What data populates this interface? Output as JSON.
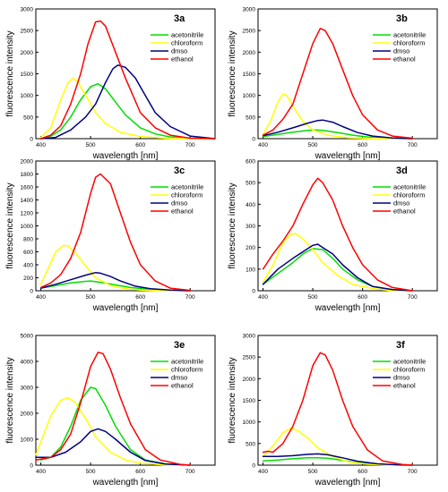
{
  "chart_data": [
    {
      "type": "line",
      "title": "3a",
      "xlabel": "wavelength [nm]",
      "ylabel": "fluorescence intensity",
      "xlim": [
        390,
        750
      ],
      "ylim": [
        0,
        3000
      ],
      "xticks": [
        400,
        500,
        600,
        700
      ],
      "yticks": [
        0,
        500,
        1000,
        1500,
        2000,
        2500,
        3000
      ],
      "legend_position": "top-right",
      "series": [
        {
          "name": "acetonitrile",
          "color": "#00dd00",
          "x": [
            400,
            420,
            440,
            460,
            480,
            500,
            515,
            530,
            550,
            570,
            600,
            630,
            660,
            700,
            750
          ],
          "y": [
            0,
            60,
            200,
            500,
            900,
            1200,
            1270,
            1150,
            850,
            550,
            250,
            110,
            40,
            10,
            0
          ]
        },
        {
          "name": "chloroform",
          "color": "#ffff00",
          "x": [
            400,
            420,
            440,
            455,
            465,
            475,
            490,
            510,
            530,
            560,
            600,
            650,
            700,
            750
          ],
          "y": [
            30,
            250,
            900,
            1300,
            1400,
            1300,
            1000,
            600,
            350,
            150,
            50,
            10,
            0,
            0
          ]
        },
        {
          "name": "dmso",
          "color": "#000080",
          "x": [
            400,
            430,
            460,
            490,
            510,
            530,
            545,
            555,
            570,
            590,
            610,
            630,
            660,
            700,
            750
          ],
          "y": [
            0,
            30,
            200,
            500,
            800,
            1300,
            1620,
            1700,
            1650,
            1400,
            1000,
            600,
            280,
            60,
            0
          ]
        },
        {
          "name": "ethanol",
          "color": "#ff0000",
          "x": [
            400,
            420,
            440,
            460,
            480,
            495,
            510,
            520,
            530,
            550,
            570,
            600,
            630,
            660,
            700,
            750
          ],
          "y": [
            0,
            80,
            300,
            800,
            1500,
            2200,
            2700,
            2720,
            2600,
            2000,
            1400,
            600,
            250,
            80,
            10,
            0
          ]
        }
      ]
    },
    {
      "type": "line",
      "title": "3b",
      "xlabel": "wavelength [nm]",
      "ylabel": "fluorescence intensity",
      "xlim": [
        390,
        750
      ],
      "ylim": [
        0,
        3000
      ],
      "xticks": [
        400,
        500,
        600,
        700
      ],
      "yticks": [
        0,
        500,
        1000,
        1500,
        2000,
        2500,
        3000
      ],
      "legend_position": "top-right",
      "series": [
        {
          "name": "acetonitrile",
          "color": "#00dd00",
          "x": [
            400,
            430,
            460,
            490,
            505,
            520,
            550,
            580,
            610,
            650,
            700
          ],
          "y": [
            50,
            100,
            150,
            190,
            200,
            190,
            140,
            80,
            40,
            10,
            0
          ]
        },
        {
          "name": "chloroform",
          "color": "#ffff00",
          "x": [
            400,
            415,
            430,
            440,
            448,
            460,
            480,
            500,
            530,
            570,
            600,
            650,
            700
          ],
          "y": [
            100,
            400,
            850,
            1030,
            1000,
            750,
            400,
            200,
            80,
            20,
            10,
            0,
            0
          ]
        },
        {
          "name": "dmso",
          "color": "#000080",
          "x": [
            400,
            430,
            460,
            490,
            510,
            520,
            540,
            560,
            590,
            620,
            660,
            700
          ],
          "y": [
            70,
            150,
            250,
            360,
            420,
            430,
            380,
            280,
            140,
            60,
            15,
            0
          ]
        },
        {
          "name": "ethanol",
          "color": "#ff0000",
          "x": [
            400,
            420,
            440,
            460,
            480,
            500,
            515,
            525,
            540,
            560,
            580,
            600,
            630,
            660,
            700
          ],
          "y": [
            80,
            200,
            450,
            800,
            1500,
            2200,
            2550,
            2500,
            2200,
            1600,
            1000,
            550,
            200,
            60,
            10
          ]
        }
      ]
    },
    {
      "type": "line",
      "title": "3c",
      "xlabel": "wavelength [nm]",
      "ylabel": "fluorescence intensity",
      "xlim": [
        390,
        750
      ],
      "ylim": [
        0,
        2000
      ],
      "xticks": [
        400,
        500,
        600,
        700
      ],
      "yticks": [
        0,
        200,
        400,
        600,
        800,
        1000,
        1200,
        1400,
        1600,
        1800,
        2000
      ],
      "legend_position": "top-right",
      "series": [
        {
          "name": "acetonitrile",
          "color": "#00dd00",
          "x": [
            400,
            430,
            460,
            490,
            500,
            520,
            550,
            580,
            620,
            660,
            700
          ],
          "y": [
            40,
            80,
            120,
            145,
            150,
            130,
            90,
            50,
            20,
            5,
            0
          ]
        },
        {
          "name": "chloroform",
          "color": "#ffff00",
          "x": [
            400,
            415,
            430,
            445,
            455,
            470,
            490,
            510,
            540,
            570,
            600,
            650,
            700
          ],
          "y": [
            100,
            350,
            600,
            700,
            690,
            580,
            380,
            200,
            80,
            30,
            10,
            0,
            0
          ]
        },
        {
          "name": "dmso",
          "color": "#000080",
          "x": [
            400,
            430,
            460,
            490,
            510,
            520,
            540,
            560,
            590,
            620,
            660,
            700
          ],
          "y": [
            40,
            100,
            170,
            240,
            280,
            270,
            220,
            150,
            70,
            30,
            10,
            0
          ]
        },
        {
          "name": "ethanol",
          "color": "#ff0000",
          "x": [
            400,
            420,
            440,
            460,
            480,
            500,
            510,
            520,
            540,
            560,
            580,
            600,
            630,
            660,
            700
          ],
          "y": [
            50,
            120,
            250,
            500,
            900,
            1500,
            1750,
            1800,
            1650,
            1200,
            750,
            400,
            150,
            40,
            5
          ]
        }
      ]
    },
    {
      "type": "line",
      "title": "3d",
      "xlabel": "wavelength [nm]",
      "ylabel": "fluorescence intensity",
      "xlim": [
        390,
        750
      ],
      "ylim": [
        0,
        600
      ],
      "xticks": [
        400,
        500,
        600,
        700
      ],
      "yticks": [
        0,
        100,
        200,
        300,
        400,
        500,
        600
      ],
      "legend_position": "top-right",
      "series": [
        {
          "name": "acetonitrile",
          "color": "#00dd00",
          "x": [
            400,
            430,
            460,
            480,
            500,
            520,
            540,
            560,
            590,
            620,
            660,
            700
          ],
          "y": [
            30,
            80,
            130,
            170,
            195,
            190,
            150,
            100,
            50,
            20,
            5,
            0
          ]
        },
        {
          "name": "chloroform",
          "color": "#ffff00",
          "x": [
            400,
            420,
            440,
            455,
            465,
            480,
            500,
            520,
            550,
            580,
            620,
            660,
            700
          ],
          "y": [
            40,
            120,
            220,
            260,
            265,
            240,
            190,
            130,
            70,
            30,
            10,
            0,
            0
          ]
        },
        {
          "name": "dmso",
          "color": "#000080",
          "x": [
            400,
            430,
            460,
            480,
            500,
            510,
            520,
            540,
            560,
            590,
            620,
            660,
            700
          ],
          "y": [
            30,
            100,
            150,
            180,
            210,
            215,
            200,
            170,
            120,
            60,
            20,
            5,
            0
          ]
        },
        {
          "name": "ethanol",
          "color": "#ff0000",
          "x": [
            400,
            420,
            440,
            460,
            480,
            500,
            510,
            520,
            540,
            560,
            580,
            600,
            630,
            660,
            700
          ],
          "y": [
            100,
            170,
            230,
            300,
            400,
            490,
            520,
            500,
            420,
            300,
            200,
            120,
            50,
            15,
            0
          ]
        }
      ]
    },
    {
      "type": "line",
      "title": "3e",
      "xlabel": "wavelength [nm]",
      "ylabel": "fluorescence intensity",
      "xlim": [
        390,
        750
      ],
      "ylim": [
        0,
        5000
      ],
      "xticks": [
        400,
        500,
        600,
        700
      ],
      "yticks": [
        0,
        1000,
        2000,
        3000,
        4000,
        5000
      ],
      "legend_position": "top-right",
      "series": [
        {
          "name": "acetonitrile",
          "color": "#00dd00",
          "x": [
            400,
            420,
            440,
            460,
            480,
            500,
            510,
            530,
            550,
            580,
            610,
            650,
            700
          ],
          "y": [
            200,
            300,
            700,
            1500,
            2500,
            3000,
            2950,
            2300,
            1500,
            600,
            200,
            50,
            0
          ]
        },
        {
          "name": "chloroform",
          "color": "#ffff00",
          "x": [
            390,
            400,
            420,
            440,
            455,
            470,
            490,
            510,
            540,
            570,
            600,
            650,
            700
          ],
          "y": [
            400,
            900,
            1900,
            2500,
            2600,
            2400,
            1800,
            1100,
            500,
            200,
            80,
            10,
            0
          ]
        },
        {
          "name": "dmso",
          "color": "#000080",
          "x": [
            390,
            420,
            450,
            480,
            500,
            515,
            530,
            550,
            580,
            610,
            650,
            700
          ],
          "y": [
            300,
            300,
            500,
            900,
            1300,
            1400,
            1300,
            1000,
            500,
            180,
            40,
            0
          ]
        },
        {
          "name": "ethanol",
          "color": "#ff0000",
          "x": [
            390,
            420,
            440,
            460,
            480,
            500,
            515,
            525,
            540,
            560,
            580,
            610,
            640,
            680,
            700
          ],
          "y": [
            200,
            300,
            600,
            1200,
            2400,
            3800,
            4350,
            4300,
            3700,
            2600,
            1600,
            600,
            200,
            30,
            0
          ]
        }
      ]
    },
    {
      "type": "line",
      "title": "3f",
      "xlabel": "wavelength [nm]",
      "ylabel": "fluorescence intensity",
      "xlim": [
        390,
        750
      ],
      "ylim": [
        0,
        3000
      ],
      "xticks": [
        400,
        500,
        600,
        700
      ],
      "yticks": [
        0,
        500,
        1000,
        1500,
        2000,
        2500,
        3000
      ],
      "legend_position": "top-right",
      "series": [
        {
          "name": "acetonitrile",
          "color": "#00dd00",
          "x": [
            400,
            430,
            460,
            490,
            510,
            530,
            560,
            590,
            630,
            670,
            700
          ],
          "y": [
            100,
            120,
            150,
            170,
            170,
            160,
            110,
            60,
            20,
            5,
            0
          ]
        },
        {
          "name": "chloroform",
          "color": "#ffff00",
          "x": [
            400,
            420,
            440,
            455,
            470,
            490,
            510,
            540,
            570,
            610,
            650,
            700
          ],
          "y": [
            200,
            450,
            750,
            850,
            800,
            620,
            400,
            200,
            80,
            20,
            5,
            0
          ]
        },
        {
          "name": "dmso",
          "color": "#000080",
          "x": [
            400,
            430,
            460,
            490,
            510,
            530,
            560,
            590,
            630,
            670,
            700
          ],
          "y": [
            200,
            200,
            220,
            250,
            260,
            240,
            170,
            90,
            30,
            8,
            0
          ]
        },
        {
          "name": "ethanol",
          "color": "#ff0000",
          "x": [
            400,
            410,
            420,
            440,
            460,
            480,
            500,
            515,
            525,
            540,
            560,
            580,
            610,
            640,
            680,
            700
          ],
          "y": [
            300,
            320,
            300,
            500,
            900,
            1500,
            2300,
            2600,
            2550,
            2200,
            1500,
            900,
            350,
            100,
            15,
            0
          ]
        }
      ]
    }
  ]
}
